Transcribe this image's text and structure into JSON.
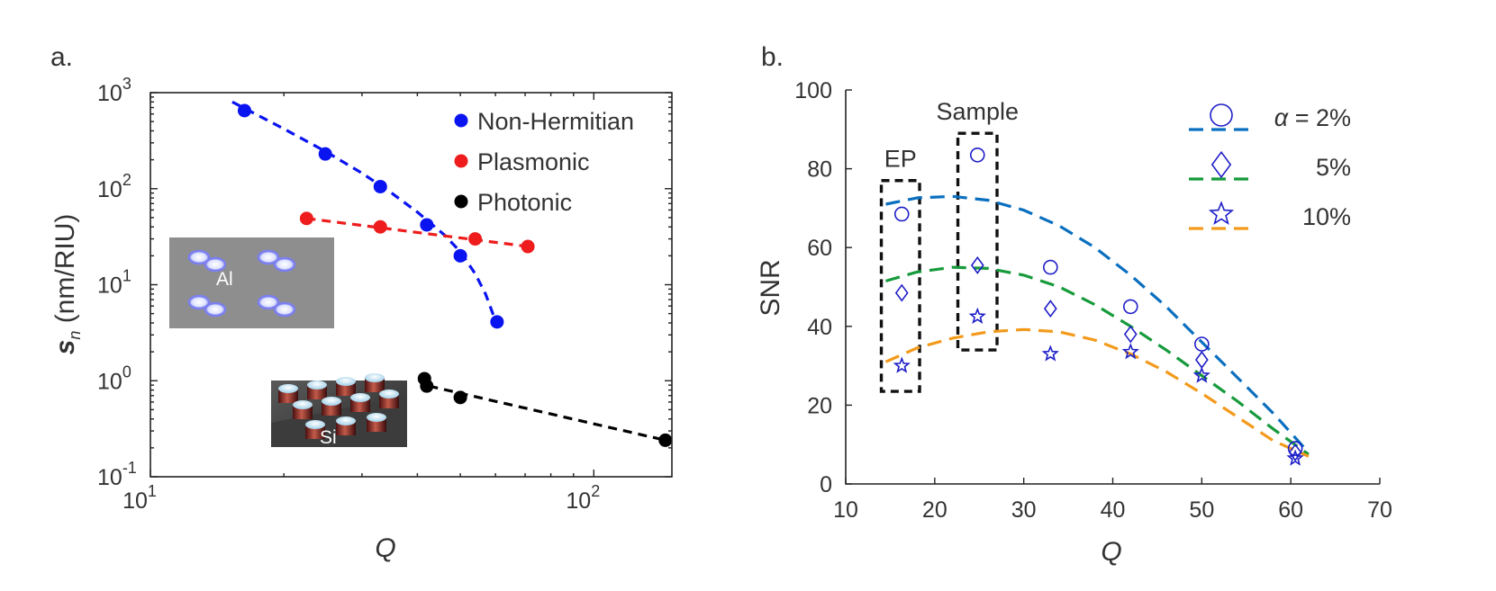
{
  "chart_data": [
    {
      "panel_label": "a.",
      "type": "scatter",
      "xlabel": "Q",
      "ylabel_main": "s",
      "ylabel_sub": "n",
      "ylabel_unit": " (nm/RIU)",
      "xscale": "log",
      "yscale": "log",
      "xlim": [
        10,
        150
      ],
      "ylim": [
        0.1,
        1000
      ],
      "x_ticks": [
        {
          "value": 10,
          "base": "10",
          "exp": "1"
        },
        {
          "value": 100,
          "base": "10",
          "exp": "2"
        }
      ],
      "y_ticks": [
        {
          "value": 0.1,
          "base": "10",
          "exp": "-1"
        },
        {
          "value": 1,
          "base": "10",
          "exp": "0"
        },
        {
          "value": 10,
          "base": "10",
          "exp": "1"
        },
        {
          "value": 100,
          "base": "10",
          "exp": "2"
        },
        {
          "value": 1000,
          "base": "10",
          "exp": "3"
        }
      ],
      "legend_position": "top-right",
      "series": [
        {
          "name": "Non-Hermitian",
          "color": "#0a14f0",
          "points": [
            [
              16.3,
              650
            ],
            [
              24.8,
              230
            ],
            [
              33,
              105
            ],
            [
              42,
              42
            ],
            [
              50,
              20
            ],
            [
              60.5,
              4.1
            ]
          ],
          "fit": [
            [
              15.3,
              800
            ],
            [
              20,
              420
            ],
            [
              25,
              240
            ],
            [
              30,
              145
            ],
            [
              35,
              90
            ],
            [
              40,
              57
            ],
            [
              43,
              43
            ],
            [
              46,
              33
            ],
            [
              50,
              22
            ],
            [
              54,
              13
            ],
            [
              57,
              8
            ],
            [
              59,
              5.2
            ],
            [
              60.5,
              3.8
            ]
          ]
        },
        {
          "name": "Plasmonic",
          "color": "#ee1c1c",
          "points": [
            [
              22.5,
              49
            ],
            [
              33,
              40
            ],
            [
              54,
              30
            ],
            [
              71,
              25
            ]
          ],
          "fit": [
            [
              22.5,
              49
            ],
            [
              71,
              25
            ]
          ]
        },
        {
          "name": "Photonic",
          "color": "#000000",
          "points": [
            [
              41.5,
              1.05
            ],
            [
              42,
              0.88
            ],
            [
              50,
              0.67
            ],
            [
              145,
              0.24
            ]
          ],
          "fit": [
            [
              42.5,
              0.88
            ],
            [
              145,
              0.24
            ]
          ]
        }
      ],
      "insets": [
        {
          "label": "Al"
        },
        {
          "label": "Si"
        }
      ]
    },
    {
      "panel_label": "b.",
      "type": "scatter",
      "xlabel": "Q",
      "ylabel": "SNR",
      "xlim": [
        10,
        70
      ],
      "ylim": [
        0,
        100
      ],
      "x_ticks": [
        10,
        20,
        30,
        40,
        50,
        60,
        70
      ],
      "y_ticks": [
        0,
        20,
        40,
        60,
        80,
        100
      ],
      "legend_position": "top-right",
      "legend_symbol": "α",
      "marker_color": "#1e1ec8",
      "series": [
        {
          "label_prefix": " = ",
          "name": "2%",
          "marker": "circle",
          "fit_color": "#0a6fbf",
          "points": [
            [
              16.3,
              68.5
            ],
            [
              24.8,
              83.5
            ],
            [
              33,
              55
            ],
            [
              42,
              45
            ],
            [
              50,
              35.5
            ],
            [
              60.5,
              9
            ]
          ],
          "fit": [
            [
              14.5,
              71
            ],
            [
              18,
              72.6
            ],
            [
              22,
              73
            ],
            [
              26,
              72
            ],
            [
              30,
              69.5
            ],
            [
              34,
              65.5
            ],
            [
              38,
              60
            ],
            [
              42,
              53
            ],
            [
              46,
              45
            ],
            [
              50,
              36
            ],
            [
              54,
              27
            ],
            [
              58,
              18
            ],
            [
              62,
              8
            ]
          ]
        },
        {
          "name": "5%",
          "marker": "diamond",
          "fit_color": "#169a3b",
          "points": [
            [
              16.3,
              48.5
            ],
            [
              24.8,
              55.5
            ],
            [
              33,
              44.5
            ],
            [
              42,
              38
            ],
            [
              50,
              31.5
            ],
            [
              60.5,
              8
            ]
          ],
          "fit": [
            [
              14.5,
              51.5
            ],
            [
              18,
              53.8
            ],
            [
              22,
              55
            ],
            [
              26,
              54.7
            ],
            [
              30,
              53
            ],
            [
              34,
              50
            ],
            [
              38,
              45.5
            ],
            [
              42,
              40
            ],
            [
              46,
              34
            ],
            [
              50,
              27.5
            ],
            [
              54,
              21
            ],
            [
              58,
              14
            ],
            [
              62,
              7.5
            ]
          ]
        },
        {
          "name": "10%",
          "marker": "star",
          "fit_color": "#f39a1c",
          "points": [
            [
              16.3,
              30
            ],
            [
              24.8,
              42.5
            ],
            [
              33,
              33
            ],
            [
              42,
              33.5
            ],
            [
              50,
              27.5
            ],
            [
              60.5,
              6.5
            ]
          ],
          "fit": [
            [
              14.5,
              31
            ],
            [
              18,
              34.5
            ],
            [
              22,
              37
            ],
            [
              26,
              38.6
            ],
            [
              30,
              39.2
            ],
            [
              34,
              38.6
            ],
            [
              38,
              36.5
            ],
            [
              42,
              33
            ],
            [
              46,
              28.5
            ],
            [
              50,
              23
            ],
            [
              54,
              17
            ],
            [
              58,
              11
            ],
            [
              62,
              7
            ]
          ]
        }
      ],
      "annotations": [
        {
          "text": "EP",
          "box": {
            "x": [
              14,
              18.3
            ],
            "y": [
              23.5,
              77
            ]
          }
        },
        {
          "text": "Sample",
          "box": {
            "x": [
              22.6,
              27
            ],
            "y": [
              34,
              89
            ]
          }
        }
      ]
    }
  ]
}
